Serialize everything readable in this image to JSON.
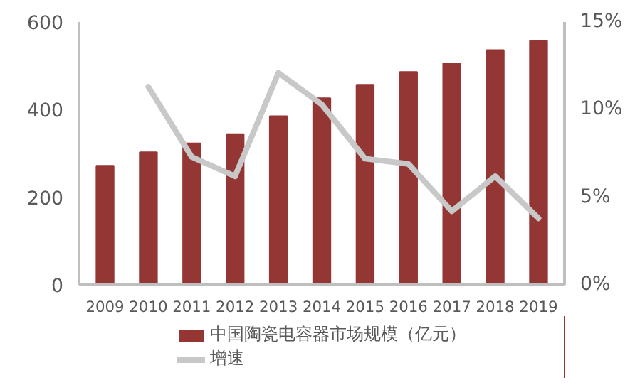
{
  "chart_data": {
    "type": "bar",
    "categories": [
      "2009",
      "2010",
      "2011",
      "2012",
      "2013",
      "2014",
      "2015",
      "2016",
      "2017",
      "2018",
      "2019"
    ],
    "series": [
      {
        "name": "中国陶瓷电容器市场规模（亿元）",
        "color": "#943634",
        "values": [
          272,
          303,
          323,
          344,
          385,
          426,
          457,
          486,
          506,
          536,
          557
        ]
      },
      {
        "name": "增速",
        "type": "line",
        "axis": "y2",
        "color": "#c8c8c8",
        "values": [
          null,
          11.3,
          7.3,
          6.2,
          12.1,
          10.3,
          7.2,
          6.9,
          4.2,
          6.2,
          3.8
        ]
      }
    ],
    "ylim": [
      0,
      600
    ],
    "yticks": [
      0,
      200,
      400,
      600
    ],
    "y2lim": [
      0,
      15
    ],
    "y2ticks": [
      {
        "value": 0,
        "label": "0%"
      },
      {
        "value": 5,
        "label": "5%"
      },
      {
        "value": 10,
        "label": "10%"
      },
      {
        "value": 15,
        "label": "15%"
      }
    ],
    "grid": false,
    "legend": "bottom"
  }
}
